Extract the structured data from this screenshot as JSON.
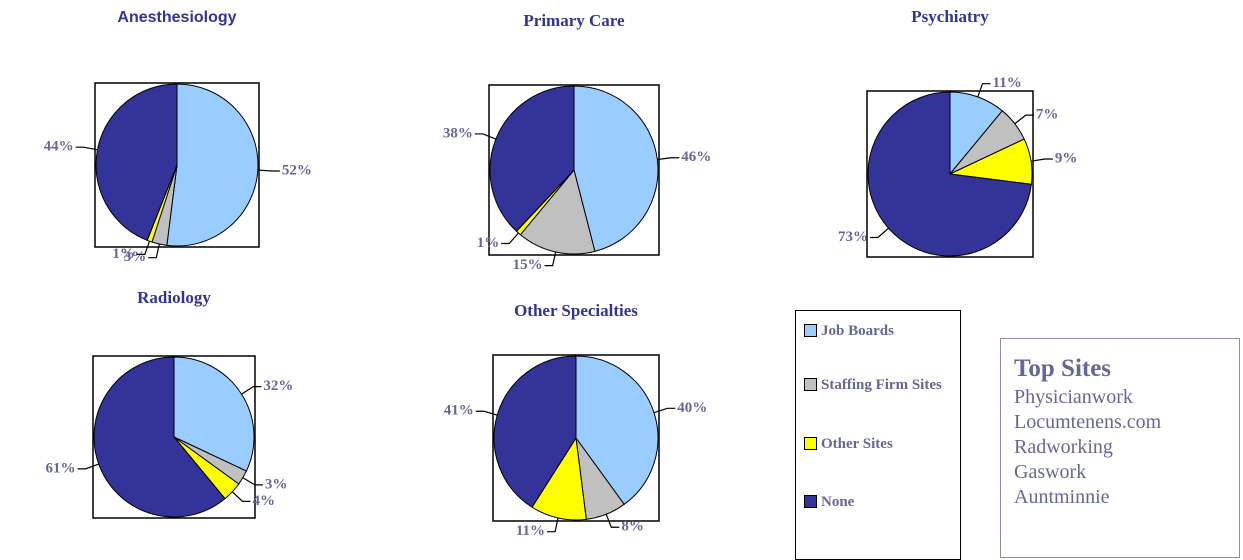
{
  "chart_data": [
    {
      "type": "pie",
      "title": "Anesthesiology",
      "values": [
        52,
        3,
        1,
        44
      ],
      "value_labels": [
        "52%",
        "3%",
        "1%",
        "44%"
      ]
    },
    {
      "type": "pie",
      "title": "Primary Care",
      "values": [
        46,
        15,
        1,
        38
      ],
      "value_labels": [
        "46%",
        "15%",
        "1%",
        "38%"
      ]
    },
    {
      "type": "pie",
      "title": "Psychiatry",
      "values": [
        11,
        7,
        9,
        73
      ],
      "value_labels": [
        "11%",
        "7%",
        "9%",
        "73%"
      ]
    },
    {
      "type": "pie",
      "title": "Radiology",
      "values": [
        32,
        3,
        4,
        61
      ],
      "value_labels": [
        "32%",
        "3%",
        "4%",
        "61%"
      ]
    },
    {
      "type": "pie",
      "title": "Other Specialties",
      "values": [
        40,
        8,
        11,
        41
      ],
      "value_labels": [
        "40%",
        "8%",
        "11%",
        "41%"
      ]
    }
  ],
  "legend": {
    "categories": [
      "Job Boards",
      "Staffing Firm Sites",
      "Other Sites",
      "None"
    ],
    "colors": [
      "#99ccff",
      "#c0c0c0",
      "#ffff00",
      "#333399"
    ]
  },
  "top_sites": {
    "title": "Top Sites",
    "items": [
      "Physicianwork",
      "Locumtenens.com",
      "Radworking",
      "Gaswork",
      "Auntminnie"
    ]
  }
}
